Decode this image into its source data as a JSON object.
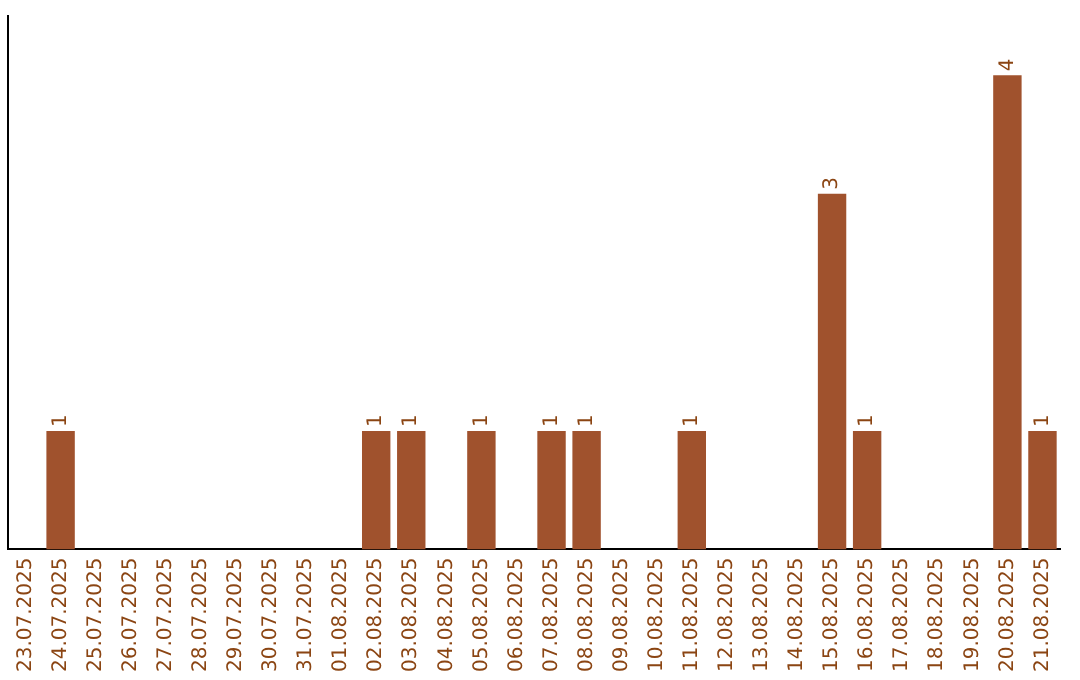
{
  "chart_data": {
    "type": "bar",
    "categories": [
      "23.07.2025",
      "24.07.2025",
      "25.07.2025",
      "26.07.2025",
      "27.07.2025",
      "28.07.2025",
      "29.07.2025",
      "30.07.2025",
      "31.07.2025",
      "01.08.2025",
      "02.08.2025",
      "03.08.2025",
      "04.08.2025",
      "05.08.2025",
      "06.08.2025",
      "07.08.2025",
      "08.08.2025",
      "09.08.2025",
      "10.08.2025",
      "11.08.2025",
      "12.08.2025",
      "13.08.2025",
      "14.08.2025",
      "15.08.2025",
      "16.08.2025",
      "17.08.2025",
      "18.08.2025",
      "19.08.2025",
      "20.08.2025",
      "21.08.2025"
    ],
    "values": [
      0,
      1,
      0,
      0,
      0,
      0,
      0,
      0,
      0,
      0,
      1,
      1,
      0,
      1,
      0,
      1,
      1,
      0,
      0,
      1,
      0,
      0,
      0,
      3,
      1,
      0,
      0,
      0,
      4,
      1
    ],
    "value_labels": [
      null,
      "1",
      null,
      null,
      null,
      null,
      null,
      null,
      null,
      null,
      "1",
      "1",
      null,
      "1",
      null,
      "1",
      "1",
      null,
      null,
      "1",
      null,
      null,
      null,
      "3",
      "1",
      null,
      null,
      null,
      "4",
      "1"
    ],
    "color": "#a0522d",
    "tick_labels": "x",
    "grid": false,
    "legend": false
  }
}
